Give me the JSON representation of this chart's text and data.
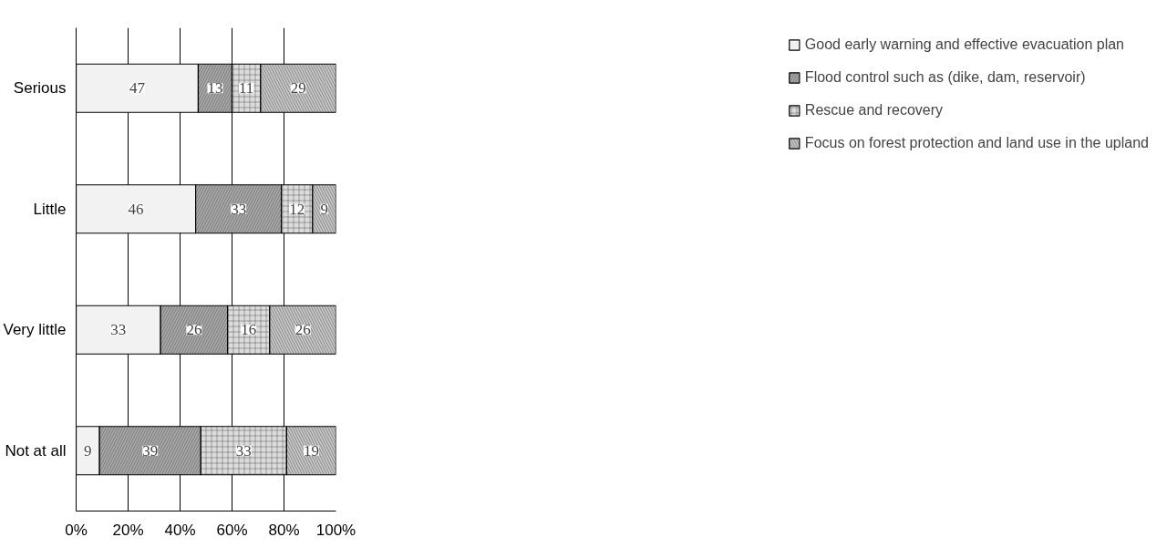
{
  "chart_data": {
    "type": "bar",
    "orientation": "horizontal",
    "stacked": true,
    "categories": [
      "Serious",
      "Little",
      "Very little",
      "Not at all"
    ],
    "series": [
      {
        "name": "Good early warning and effective evacuation plan",
        "color": "#f2f2f2",
        "values": [
          47,
          46,
          32.5,
          9
        ],
        "value_labels": [
          "47",
          "46",
          "33",
          "9"
        ]
      },
      {
        "name": "Flood control such as (dike, dam, reservoir)",
        "color": "#a6a6a6",
        "values": [
          13,
          33,
          25.8,
          39
        ],
        "value_labels": [
          "13",
          "33",
          "26",
          "39"
        ]
      },
      {
        "name": "Rescue and recovery",
        "color": "#dcdcdc",
        "values": [
          11,
          12,
          16.2,
          33
        ],
        "value_labels": [
          "11",
          "12",
          "16",
          "33"
        ]
      },
      {
        "name": "Focus on forest protection and land use in the upland",
        "color": "#c4c4c4",
        "values": [
          29,
          9,
          25.5,
          19
        ],
        "value_labels": [
          "29",
          "9",
          "26",
          "19"
        ]
      }
    ],
    "xlim": [
      0,
      100
    ],
    "xticks": [
      {
        "value": 0,
        "label": "0%"
      },
      {
        "value": 20,
        "label": "20%"
      },
      {
        "value": 40,
        "label": "40%"
      },
      {
        "value": 60,
        "label": "60%"
      },
      {
        "value": 80,
        "label": "80%"
      },
      {
        "value": 100,
        "label": "100%"
      }
    ],
    "grid": "x",
    "legend": "right"
  }
}
